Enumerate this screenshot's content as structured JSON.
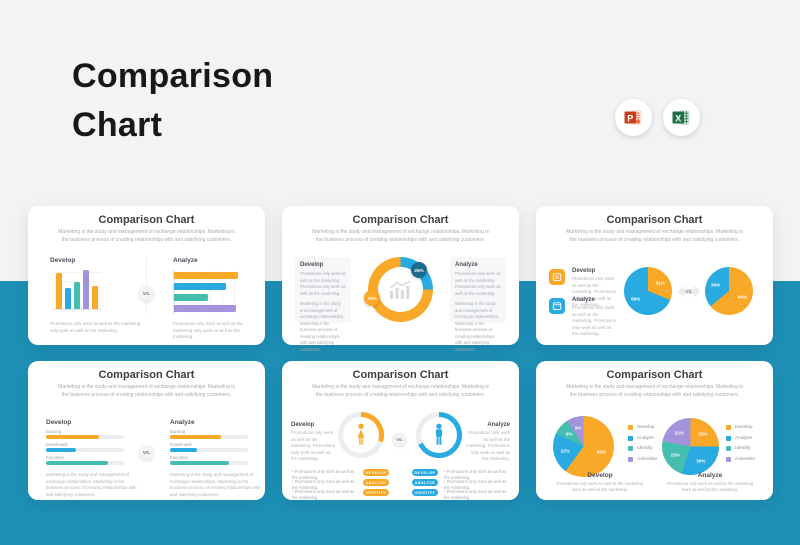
{
  "page": {
    "title_line1": "Comparison",
    "title_line2": "Chart",
    "powerpoint_letter": "P",
    "excel_letter": "X"
  },
  "colors": {
    "orange": "#F9A827",
    "blue": "#29ABE2",
    "teal": "#45BEAF",
    "purple": "#A393DB",
    "dark": "#1A6B8C",
    "track": "#ECEDF0",
    "background_top": "#F3F3F4",
    "background_bottom": "#1E90B6"
  },
  "common": {
    "title": "Comparison Chart",
    "subtitle": "Marketing is the study and management of exchange relationships. Marketing is the business process of creating relationships with and satisfying customers.",
    "vs": "VS."
  },
  "slides": {
    "s1": {
      "develop_label": "Develop",
      "analyze_label": "Analyze",
      "vbars": {
        "values": [
          88,
          52,
          67,
          95,
          57
        ],
        "colors": [
          "orange",
          "blue",
          "teal",
          "purple",
          "orange"
        ]
      },
      "hbars": {
        "values": [
          95,
          78,
          50,
          92
        ],
        "colors": [
          "orange",
          "blue",
          "teal",
          "purple"
        ]
      },
      "caption": "Promotions only work as well as the marketing only work as well as the marketing."
    },
    "s2": {
      "develop_label": "Develop",
      "analyze_label": "Analyze",
      "text1": "Promotions only work as well as the marketing. Promotions only work as well as the marketing.",
      "text2": "Marketing is the study and management of exchange relationships. Marketing is the business process of creating relationships with and satisfying customers.",
      "donut": {
        "values": [
          25,
          75
        ],
        "colors": [
          "blue",
          "orange"
        ]
      },
      "badge_blue": "25%",
      "badge_orange": "75%"
    },
    "s3": {
      "items": [
        {
          "label": "Develop",
          "color": "orange",
          "caption": "Promotions only work as well as the marketing. Promotions only work as well as the marketing."
        },
        {
          "label": "Analyze",
          "color": "blue",
          "caption": "Promotions only work as well as the marketing. Promotions only work as well as the marketing."
        }
      ],
      "pie_left": {
        "values": [
          31,
          69
        ],
        "colors": [
          "orange",
          "blue"
        ],
        "labels": [
          "31%",
          "69%"
        ]
      },
      "pie_right": {
        "values": [
          64,
          36
        ],
        "colors": [
          "orange",
          "blue"
        ],
        "labels": [
          "64%",
          "36%"
        ]
      }
    },
    "s4": {
      "cols": [
        {
          "label": "Develop",
          "bars": [
            {
              "name": "Earning",
              "value": 68,
              "color": "orange"
            },
            {
              "name": "Downloads",
              "value": 38,
              "color": "blue"
            },
            {
              "name": "Favorites",
              "value": 80,
              "color": "teal"
            }
          ],
          "caption": "Marketing is the study and management of exchange relationships. Marketing is the business process of creating relationships with and satisfying customers."
        },
        {
          "label": "Analyze",
          "bars": [
            {
              "name": "Earning",
              "value": 65,
              "color": "orange"
            },
            {
              "name": "Downloads",
              "value": 34,
              "color": "blue"
            },
            {
              "name": "Favorites",
              "value": 75,
              "color": "teal"
            }
          ],
          "caption": "Marketing is the study and management of exchange relationships. Marketing is the business process of creating relationships with and satisfying customers."
        }
      ]
    },
    "s5": {
      "develop_label": "Develop",
      "analyze_label": "Analyze",
      "develop_caption": "Promotions only work as well as the marketing. Promotions only work as well as the marketing.",
      "analyze_caption": "Promotions only work as well as the marketing. Promotions only work as well as the marketing.",
      "ring_left": {
        "values": [
          30,
          70
        ],
        "colors": [
          "orange",
          "track"
        ]
      },
      "ring_right": {
        "values": [
          68,
          32
        ],
        "colors": [
          "blue",
          "track"
        ]
      },
      "bullet": "Promotions only work as well as the marketing.",
      "pills": [
        "DEVELOP",
        "ANALYZE",
        "IDENTIFY"
      ]
    },
    "s6": {
      "legend": [
        {
          "label": "Develop",
          "color": "orange"
        },
        {
          "label": "Analyze",
          "color": "blue"
        },
        {
          "label": "Identify",
          "color": "teal"
        },
        {
          "label": "Advertise",
          "color": "purple"
        }
      ],
      "pie_left": {
        "values": [
          60,
          22,
          9,
          9
        ],
        "colors": [
          "orange",
          "blue",
          "teal",
          "purple"
        ],
        "labels": [
          "60%",
          "22%",
          "9%",
          "9%"
        ]
      },
      "pie_right": {
        "values": [
          25,
          30,
          23,
          22
        ],
        "colors": [
          "orange",
          "blue",
          "teal",
          "purple"
        ],
        "labels": [
          "25%",
          "30%",
          "23%",
          "22%"
        ]
      },
      "develop_label": "Develop",
      "analyze_label": "Analyze",
      "caption": "Promotions only work as well as the marketing work as well as the marketing."
    }
  },
  "chart_data": [
    {
      "slide": 1,
      "type": "bar",
      "orientation": "vertical",
      "series_label": "Develop",
      "values": [
        88,
        52,
        67,
        95,
        57
      ]
    },
    {
      "slide": 1,
      "type": "bar",
      "orientation": "horizontal",
      "series_label": "Analyze",
      "values": [
        95,
        78,
        50,
        92
      ]
    },
    {
      "slide": 2,
      "type": "pie",
      "style": "donut",
      "labels": [
        "25%",
        "75%"
      ],
      "values": [
        25,
        75
      ]
    },
    {
      "slide": 3,
      "type": "pie",
      "series_label": "Develop",
      "labels": [
        "31%",
        "69%"
      ],
      "values": [
        31,
        69
      ]
    },
    {
      "slide": 3,
      "type": "pie",
      "series_label": "Analyze",
      "labels": [
        "64%",
        "36%"
      ],
      "values": [
        64,
        36
      ]
    },
    {
      "slide": 4,
      "type": "bar",
      "orientation": "horizontal",
      "series_label": "Develop",
      "categories": [
        "Earning",
        "Downloads",
        "Favorites"
      ],
      "values": [
        68,
        38,
        80
      ]
    },
    {
      "slide": 4,
      "type": "bar",
      "orientation": "horizontal",
      "series_label": "Analyze",
      "categories": [
        "Earning",
        "Downloads",
        "Favorites"
      ],
      "values": [
        65,
        34,
        75
      ]
    },
    {
      "slide": 5,
      "type": "ring",
      "series_label": "Develop",
      "values": [
        30
      ]
    },
    {
      "slide": 5,
      "type": "ring",
      "series_label": "Analyze",
      "values": [
        68
      ]
    },
    {
      "slide": 6,
      "type": "pie",
      "series_label": "Develop",
      "categories": [
        "Develop",
        "Analyze",
        "Identify",
        "Advertise"
      ],
      "values": [
        60,
        22,
        9,
        9
      ]
    },
    {
      "slide": 6,
      "type": "pie",
      "series_label": "Analyze",
      "categories": [
        "Develop",
        "Analyze",
        "Identify",
        "Advertise"
      ],
      "values": [
        25,
        30,
        23,
        22
      ]
    }
  ]
}
